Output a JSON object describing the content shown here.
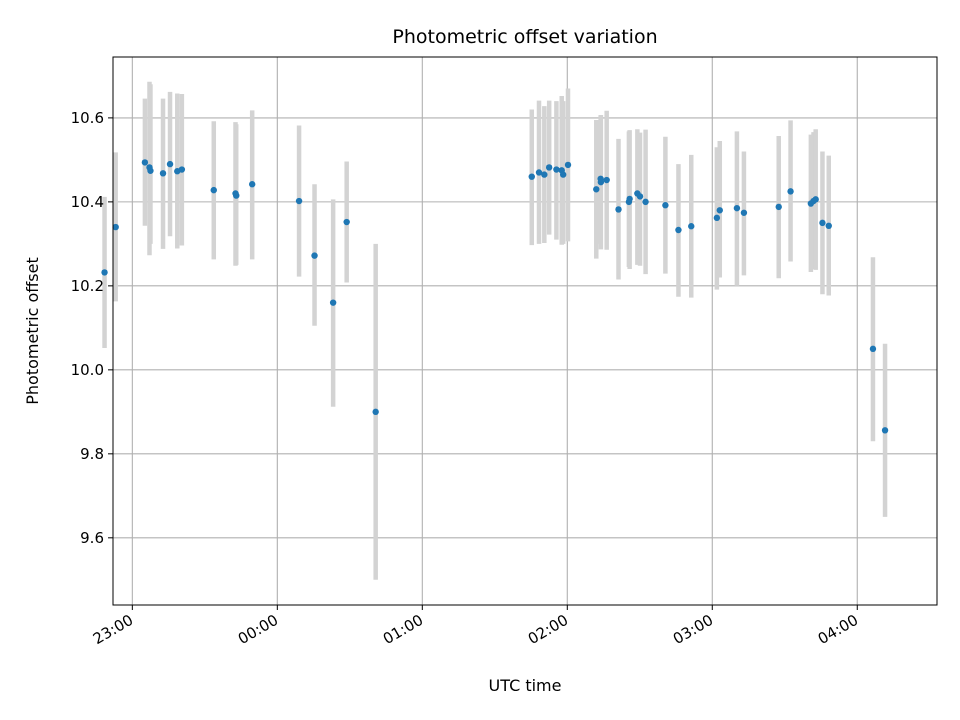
{
  "chart_data": {
    "type": "scatter",
    "title": "Photometric offset variation",
    "xlabel": "UTC time",
    "ylabel": "Photometric offset",
    "x_unit": "minutes after 00:00 UTC",
    "xlim": [
      -68,
      273
    ],
    "ylim": [
      9.44,
      10.745
    ],
    "grid": true,
    "marker_color": "#1f77b4",
    "errorbar_color": "#d3d3d3",
    "xticks": [
      {
        "value": -60,
        "label": "23:00"
      },
      {
        "value": 0,
        "label": "00:00"
      },
      {
        "value": 60,
        "label": "01:00"
      },
      {
        "value": 120,
        "label": "02:00"
      },
      {
        "value": 180,
        "label": "03:00"
      },
      {
        "value": 240,
        "label": "04:00"
      }
    ],
    "yticks": [
      {
        "value": 9.6,
        "label": "9.6"
      },
      {
        "value": 9.8,
        "label": "9.8"
      },
      {
        "value": 10.0,
        "label": "10.0"
      },
      {
        "value": 10.2,
        "label": "10.2"
      },
      {
        "value": 10.4,
        "label": "10.4"
      },
      {
        "value": 10.6,
        "label": "10.6"
      }
    ],
    "series": [
      {
        "points": [
          {
            "x": -71.5,
            "y": 10.232,
            "ylow": 10.052,
            "yhigh": 10.412
          },
          {
            "x": -66.9,
            "y": 10.34,
            "ylow": 10.163,
            "yhigh": 10.518
          },
          {
            "x": -54.8,
            "y": 10.494,
            "ylow": 10.343,
            "yhigh": 10.646
          },
          {
            "x": -52.9,
            "y": 10.482,
            "ylow": 10.273,
            "yhigh": 10.686
          },
          {
            "x": -52.5,
            "y": 10.474,
            "ylow": 10.3,
            "yhigh": 10.68
          },
          {
            "x": -47.3,
            "y": 10.468,
            "ylow": 10.288,
            "yhigh": 10.646
          },
          {
            "x": -44.4,
            "y": 10.49,
            "ylow": 10.318,
            "yhigh": 10.662
          },
          {
            "x": -41.4,
            "y": 10.473,
            "ylow": 10.289,
            "yhigh": 10.658
          },
          {
            "x": -39.5,
            "y": 10.477,
            "ylow": 10.296,
            "yhigh": 10.657
          },
          {
            "x": -26.3,
            "y": 10.428,
            "ylow": 10.263,
            "yhigh": 10.592
          },
          {
            "x": -17.3,
            "y": 10.42,
            "ylow": 10.248,
            "yhigh": 10.59
          },
          {
            "x": -17.0,
            "y": 10.415,
            "ylow": 10.25,
            "yhigh": 10.585
          },
          {
            "x": -10.4,
            "y": 10.442,
            "ylow": 10.263,
            "yhigh": 10.618
          },
          {
            "x": 9.0,
            "y": 10.402,
            "ylow": 10.222,
            "yhigh": 10.582
          },
          {
            "x": 15.4,
            "y": 10.272,
            "ylow": 10.105,
            "yhigh": 10.442
          },
          {
            "x": 23.1,
            "y": 10.16,
            "ylow": 9.912,
            "yhigh": 10.406
          },
          {
            "x": 28.7,
            "y": 10.352,
            "ylow": 10.208,
            "yhigh": 10.496
          },
          {
            "x": 40.7,
            "y": 9.9,
            "ylow": 9.5,
            "yhigh": 10.3
          },
          {
            "x": 105.3,
            "y": 10.46,
            "ylow": 10.297,
            "yhigh": 10.62
          },
          {
            "x": 108.3,
            "y": 10.47,
            "ylow": 10.3,
            "yhigh": 10.641
          },
          {
            "x": 110.5,
            "y": 10.465,
            "ylow": 10.302,
            "yhigh": 10.628
          },
          {
            "x": 112.5,
            "y": 10.482,
            "ylow": 10.322,
            "yhigh": 10.641
          },
          {
            "x": 115.5,
            "y": 10.477,
            "ylow": 10.31,
            "yhigh": 10.64
          },
          {
            "x": 117.7,
            "y": 10.475,
            "ylow": 10.298,
            "yhigh": 10.652
          },
          {
            "x": 118.3,
            "y": 10.465,
            "ylow": 10.3,
            "yhigh": 10.64
          },
          {
            "x": 120.3,
            "y": 10.488,
            "ylow": 10.306,
            "yhigh": 10.67
          },
          {
            "x": 132.0,
            "y": 10.43,
            "ylow": 10.265,
            "yhigh": 10.595
          },
          {
            "x": 133.8,
            "y": 10.455,
            "ylow": 10.3,
            "yhigh": 10.606
          },
          {
            "x": 133.9,
            "y": 10.447,
            "ylow": 10.287,
            "yhigh": 10.607
          },
          {
            "x": 136.3,
            "y": 10.452,
            "ylow": 10.286,
            "yhigh": 10.617
          },
          {
            "x": 141.2,
            "y": 10.382,
            "ylow": 10.215,
            "yhigh": 10.55
          },
          {
            "x": 145.8,
            "y": 10.407,
            "ylow": 10.24,
            "yhigh": 10.571
          },
          {
            "x": 145.5,
            "y": 10.4,
            "ylow": 10.245,
            "yhigh": 10.568
          },
          {
            "x": 149.0,
            "y": 10.42,
            "ylow": 10.25,
            "yhigh": 10.573
          },
          {
            "x": 150.1,
            "y": 10.413,
            "ylow": 10.248,
            "yhigh": 10.565
          },
          {
            "x": 152.4,
            "y": 10.4,
            "ylow": 10.228,
            "yhigh": 10.572
          },
          {
            "x": 160.6,
            "y": 10.392,
            "ylow": 10.229,
            "yhigh": 10.555
          },
          {
            "x": 166.0,
            "y": 10.333,
            "ylow": 10.174,
            "yhigh": 10.49
          },
          {
            "x": 171.3,
            "y": 10.342,
            "ylow": 10.172,
            "yhigh": 10.512
          },
          {
            "x": 181.9,
            "y": 10.362,
            "ylow": 10.191,
            "yhigh": 10.53
          },
          {
            "x": 183.1,
            "y": 10.38,
            "ylow": 10.22,
            "yhigh": 10.545
          },
          {
            "x": 190.2,
            "y": 10.385,
            "ylow": 10.2,
            "yhigh": 10.568
          },
          {
            "x": 193.1,
            "y": 10.374,
            "ylow": 10.225,
            "yhigh": 10.52
          },
          {
            "x": 207.5,
            "y": 10.388,
            "ylow": 10.218,
            "yhigh": 10.557
          },
          {
            "x": 212.4,
            "y": 10.425,
            "ylow": 10.258,
            "yhigh": 10.594
          },
          {
            "x": 220.8,
            "y": 10.396,
            "ylow": 10.233,
            "yhigh": 10.56
          },
          {
            "x": 221.9,
            "y": 10.402,
            "ylow": 10.24,
            "yhigh": 10.566
          },
          {
            "x": 222.8,
            "y": 10.406,
            "ylow": 10.238,
            "yhigh": 10.573
          },
          {
            "x": 225.6,
            "y": 10.35,
            "ylow": 10.18,
            "yhigh": 10.52
          },
          {
            "x": 228.2,
            "y": 10.343,
            "ylow": 10.177,
            "yhigh": 10.51
          },
          {
            "x": 246.5,
            "y": 10.05,
            "ylow": 9.83,
            "yhigh": 10.268
          },
          {
            "x": 251.5,
            "y": 9.856,
            "ylow": 9.65,
            "yhigh": 10.062
          }
        ]
      }
    ]
  }
}
